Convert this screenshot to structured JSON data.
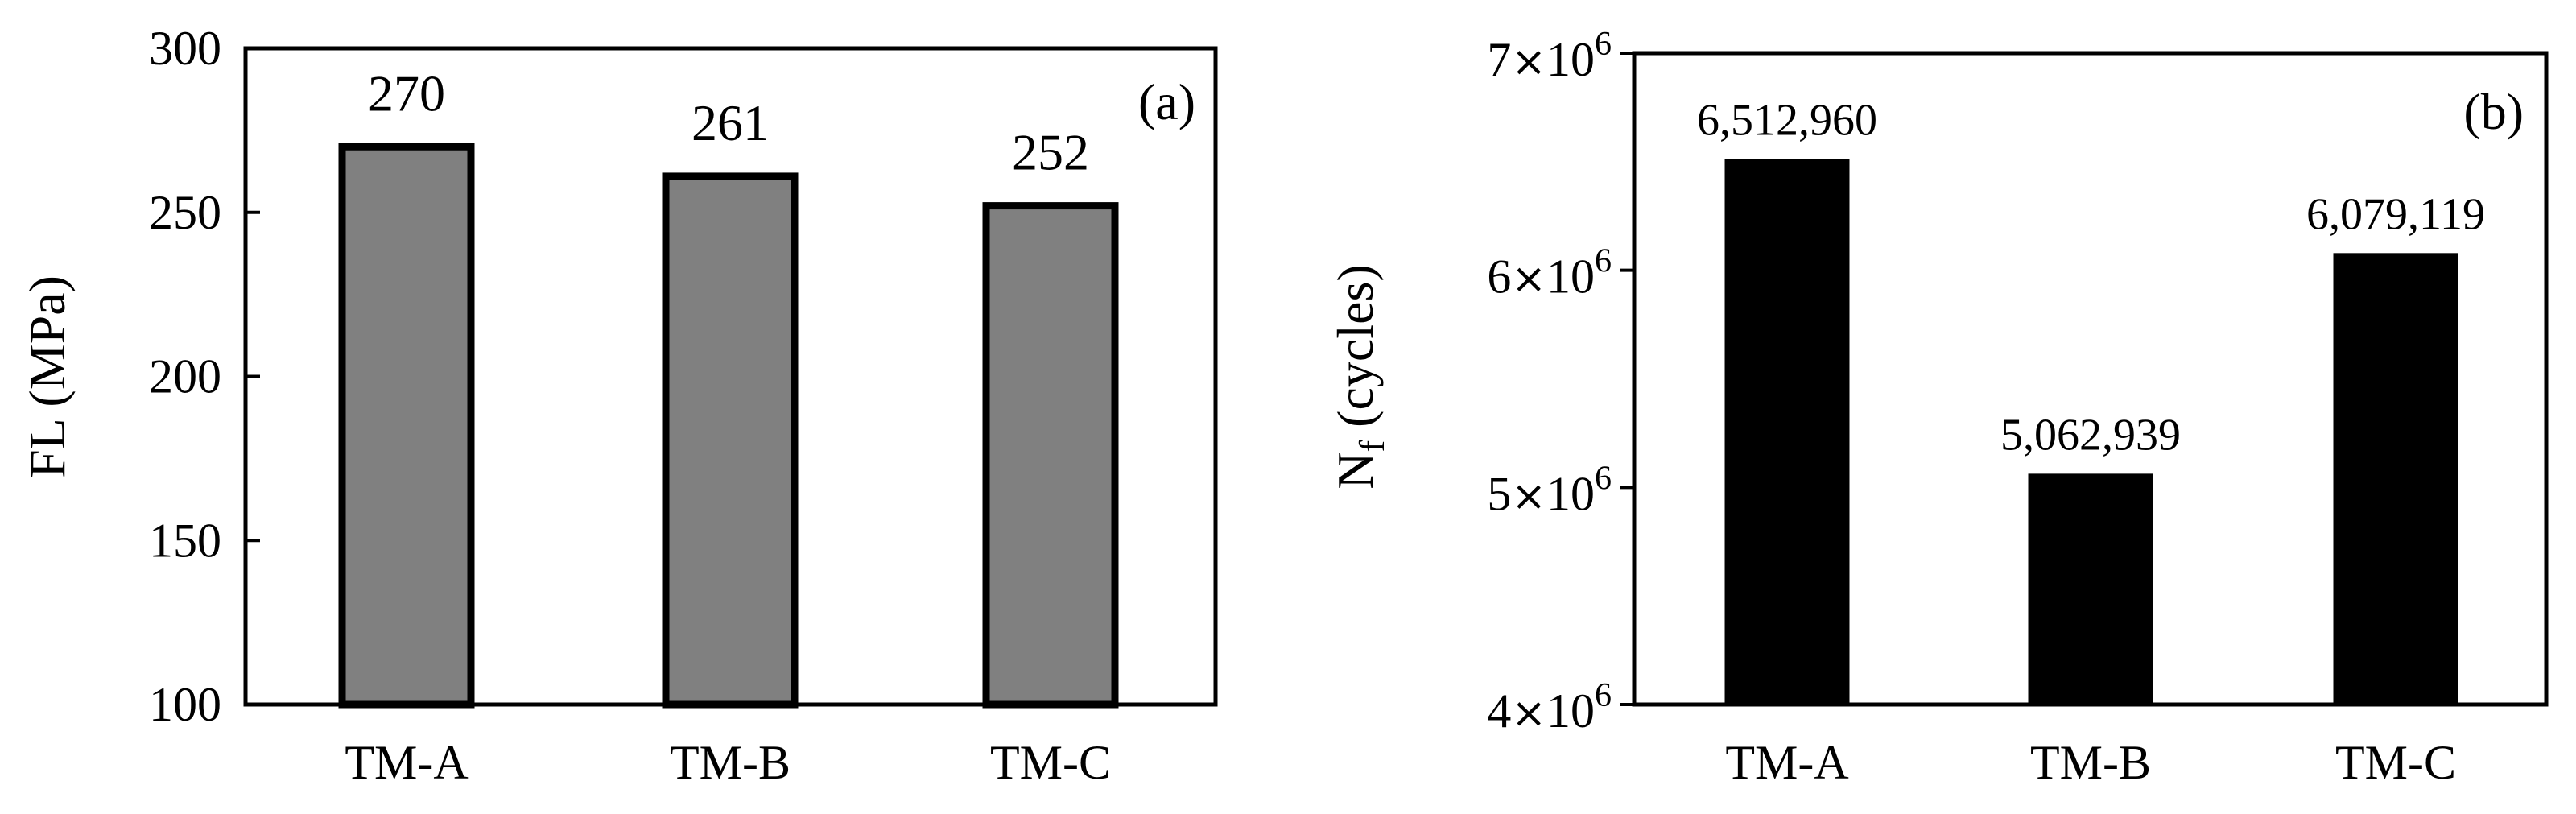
{
  "chart_data": [
    {
      "type": "bar",
      "panel_label": "(a)",
      "categories": [
        "TM-A",
        "TM-B",
        "TM-C"
      ],
      "values": [
        270,
        261,
        252
      ],
      "value_labels": [
        "270",
        "261",
        "252"
      ],
      "ylabel": "FL (MPa)",
      "ylim": [
        100,
        300
      ],
      "yticks": [
        100,
        150,
        200,
        250,
        300
      ],
      "ytick_labels": [
        "100",
        "150",
        "200",
        "250",
        "300"
      ],
      "bar_color": "#808080",
      "bar_edge_color": "#000000"
    },
    {
      "type": "bar",
      "panel_label": "(b)",
      "categories": [
        "TM-A",
        "TM-B",
        "TM-C"
      ],
      "values": [
        6512960,
        5062939,
        6079119
      ],
      "value_labels": [
        "6,512,960",
        "5,062,939",
        "6,079,119"
      ],
      "ylabel": "N",
      "ylabel_subscript": "f",
      "ylabel_suffix": " (cycles)",
      "ylim": [
        4000000,
        7000000
      ],
      "yticks": [
        4000000,
        5000000,
        6000000,
        7000000
      ],
      "ytick_labels": [
        {
          "mantissa": "4",
          "times": "×",
          "base": "10",
          "exp": "6"
        },
        {
          "mantissa": "5",
          "times": "×",
          "base": "10",
          "exp": "6"
        },
        {
          "mantissa": "6",
          "times": "×",
          "base": "10",
          "exp": "6"
        },
        {
          "mantissa": "7",
          "times": "×",
          "base": "10",
          "exp": "6"
        }
      ],
      "bar_color": "#000000",
      "bar_edge_color": "#000000"
    }
  ]
}
